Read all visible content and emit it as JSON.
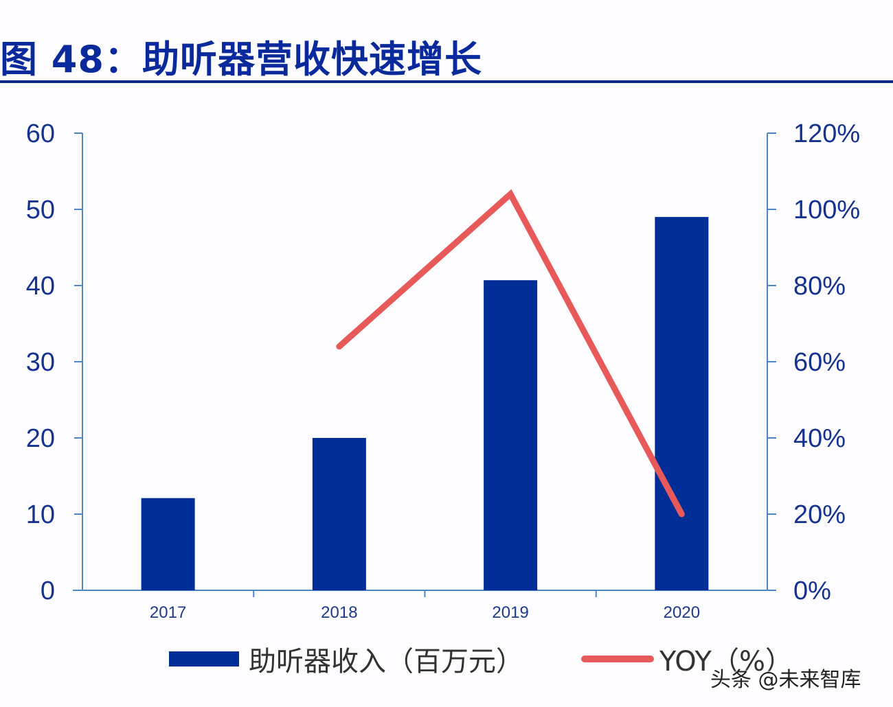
{
  "header": {
    "title": "图 48：助听器营收快速增长"
  },
  "colors": {
    "bar": "#012d96",
    "line": "#e85a5a",
    "axis": "#4a86c8",
    "text": "#16328f"
  },
  "legend": {
    "items": [
      {
        "label": "助听器收入（百万元）",
        "type": "bar"
      },
      {
        "label": "YOY（%）",
        "type": "line"
      }
    ]
  },
  "watermark": "头条 @未来智库",
  "chart_data": {
    "type": "bar",
    "title": "图 48：助听器营收快速增长",
    "categories": [
      "2017",
      "2018",
      "2019",
      "2020"
    ],
    "series": [
      {
        "name": "助听器收入（百万元）",
        "type": "bar",
        "axis": "left",
        "values": [
          12.1,
          20.0,
          40.7,
          49.0
        ]
      },
      {
        "name": "YOY（%）",
        "type": "line",
        "axis": "right",
        "values": [
          null,
          64,
          104,
          20
        ]
      }
    ],
    "xlabel": "",
    "ylabel": "",
    "ylim": [
      0,
      60
    ],
    "yticks": [
      "0",
      "10",
      "20",
      "30",
      "40",
      "50",
      "60"
    ],
    "y2lim": [
      0,
      120
    ],
    "y2ticks": [
      "0%",
      "20%",
      "40%",
      "60%",
      "80%",
      "100%",
      "120%"
    ],
    "grid": false,
    "legend_position": "bottom"
  }
}
